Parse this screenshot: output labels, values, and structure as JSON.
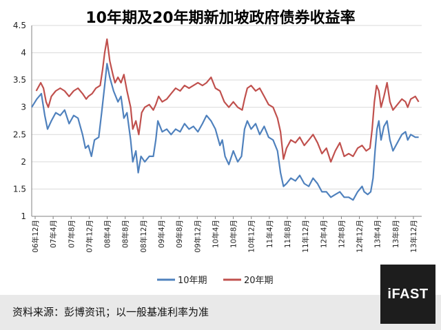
{
  "chart_data": {
    "type": "line",
    "title": "10年期及20年期新加坡政府债券收益率",
    "ylim": [
      1,
      4.5
    ],
    "yticks": [
      "1",
      "1.5",
      "2",
      "2.5",
      "3",
      "3.5",
      "4",
      "4.5"
    ],
    "xlim": [
      "2006-12",
      "2014-03"
    ],
    "x_tick_labels": [
      "06年12月",
      "07年4月",
      "07年8月",
      "07年12月",
      "08年4月",
      "08年8月",
      "08年12月",
      "09年4月",
      "09年8月",
      "09年12月",
      "10年4月",
      "10年8月",
      "10年12月",
      "11年4月",
      "11年8月",
      "11年12月",
      "12年4月",
      "12年8月",
      "12年12月",
      "13年4月",
      "13年8月",
      "13年12月"
    ],
    "grid": "horizontal",
    "legend_position": "bottom",
    "series": [
      {
        "name": "10年期",
        "color": "#4f81bd",
        "points": [
          [
            "2006-12-01",
            3.0
          ],
          [
            "2007-01-05",
            3.15
          ],
          [
            "2007-02-05",
            3.25
          ],
          [
            "2007-03-01",
            2.85
          ],
          [
            "2007-03-20",
            2.6
          ],
          [
            "2007-04-15",
            2.75
          ],
          [
            "2007-05-15",
            2.9
          ],
          [
            "2007-06-15",
            2.85
          ],
          [
            "2007-07-15",
            2.95
          ],
          [
            "2007-08-15",
            2.7
          ],
          [
            "2007-09-15",
            2.85
          ],
          [
            "2007-10-15",
            2.8
          ],
          [
            "2007-11-15",
            2.5
          ],
          [
            "2007-12-05",
            2.25
          ],
          [
            "2007-12-25",
            2.3
          ],
          [
            "2008-01-15",
            2.1
          ],
          [
            "2008-02-05",
            2.4
          ],
          [
            "2008-03-05",
            2.45
          ],
          [
            "2008-03-25",
            2.9
          ],
          [
            "2008-04-15",
            3.4
          ],
          [
            "2008-05-01",
            3.8
          ],
          [
            "2008-05-20",
            3.55
          ],
          [
            "2008-06-15",
            3.3
          ],
          [
            "2008-07-15",
            3.1
          ],
          [
            "2008-08-05",
            3.2
          ],
          [
            "2008-08-25",
            2.8
          ],
          [
            "2008-09-15",
            2.9
          ],
          [
            "2008-10-10",
            2.4
          ],
          [
            "2008-10-25",
            2.0
          ],
          [
            "2008-11-15",
            2.2
          ],
          [
            "2008-12-01",
            1.8
          ],
          [
            "2008-12-20",
            2.1
          ],
          [
            "2009-01-15",
            2.0
          ],
          [
            "2009-02-15",
            2.1
          ],
          [
            "2009-03-15",
            2.1
          ],
          [
            "2009-04-01",
            2.4
          ],
          [
            "2009-04-15",
            2.75
          ],
          [
            "2009-05-15",
            2.55
          ],
          [
            "2009-06-15",
            2.6
          ],
          [
            "2009-07-15",
            2.5
          ],
          [
            "2009-08-15",
            2.6
          ],
          [
            "2009-09-15",
            2.55
          ],
          [
            "2009-10-15",
            2.7
          ],
          [
            "2009-11-15",
            2.6
          ],
          [
            "2009-12-15",
            2.65
          ],
          [
            "2010-01-15",
            2.55
          ],
          [
            "2010-02-15",
            2.7
          ],
          [
            "2010-03-15",
            2.85
          ],
          [
            "2010-04-15",
            2.75
          ],
          [
            "2010-05-15",
            2.6
          ],
          [
            "2010-06-15",
            2.3
          ],
          [
            "2010-07-01",
            2.4
          ],
          [
            "2010-07-20",
            2.1
          ],
          [
            "2010-08-15",
            1.95
          ],
          [
            "2010-09-15",
            2.2
          ],
          [
            "2010-10-15",
            2.0
          ],
          [
            "2010-11-10",
            2.1
          ],
          [
            "2010-12-01",
            2.6
          ],
          [
            "2010-12-20",
            2.75
          ],
          [
            "2011-01-15",
            2.6
          ],
          [
            "2011-02-15",
            2.7
          ],
          [
            "2011-03-15",
            2.5
          ],
          [
            "2011-04-15",
            2.65
          ],
          [
            "2011-05-15",
            2.45
          ],
          [
            "2011-06-15",
            2.4
          ],
          [
            "2011-07-15",
            2.2
          ],
          [
            "2011-08-05",
            1.8
          ],
          [
            "2011-08-25",
            1.55
          ],
          [
            "2011-09-15",
            1.6
          ],
          [
            "2011-10-15",
            1.7
          ],
          [
            "2011-11-15",
            1.65
          ],
          [
            "2011-12-15",
            1.75
          ],
          [
            "2012-01-15",
            1.6
          ],
          [
            "2012-02-15",
            1.55
          ],
          [
            "2012-03-15",
            1.7
          ],
          [
            "2012-04-15",
            1.6
          ],
          [
            "2012-05-15",
            1.45
          ],
          [
            "2012-06-15",
            1.45
          ],
          [
            "2012-07-15",
            1.35
          ],
          [
            "2012-08-15",
            1.4
          ],
          [
            "2012-09-15",
            1.45
          ],
          [
            "2012-10-15",
            1.35
          ],
          [
            "2012-11-15",
            1.35
          ],
          [
            "2012-12-15",
            1.3
          ],
          [
            "2013-01-15",
            1.45
          ],
          [
            "2013-02-15",
            1.55
          ],
          [
            "2013-03-01",
            1.45
          ],
          [
            "2013-03-25",
            1.4
          ],
          [
            "2013-04-15",
            1.45
          ],
          [
            "2013-05-01",
            1.7
          ],
          [
            "2013-05-15",
            2.2
          ],
          [
            "2013-05-28",
            2.6
          ],
          [
            "2013-06-10",
            2.75
          ],
          [
            "2013-06-25",
            2.4
          ],
          [
            "2013-07-15",
            2.65
          ],
          [
            "2013-08-05",
            2.75
          ],
          [
            "2013-08-25",
            2.4
          ],
          [
            "2013-09-15",
            2.2
          ],
          [
            "2013-10-15",
            2.35
          ],
          [
            "2013-11-15",
            2.5
          ],
          [
            "2013-12-10",
            2.55
          ],
          [
            "2013-12-25",
            2.4
          ],
          [
            "2014-01-15",
            2.5
          ],
          [
            "2014-02-15",
            2.45
          ],
          [
            "2014-03-10",
            2.45
          ]
        ]
      },
      {
        "name": "20年期",
        "color": "#c0504d",
        "points": [
          [
            "2007-01-01",
            3.3
          ],
          [
            "2007-02-01",
            3.45
          ],
          [
            "2007-02-20",
            3.35
          ],
          [
            "2007-03-10",
            3.1
          ],
          [
            "2007-03-25",
            3.0
          ],
          [
            "2007-04-15",
            3.2
          ],
          [
            "2007-05-15",
            3.3
          ],
          [
            "2007-06-15",
            3.35
          ],
          [
            "2007-07-15",
            3.3
          ],
          [
            "2007-08-15",
            3.2
          ],
          [
            "2007-09-15",
            3.3
          ],
          [
            "2007-10-15",
            3.35
          ],
          [
            "2007-11-15",
            3.25
          ],
          [
            "2007-12-10",
            3.15
          ],
          [
            "2007-12-25",
            3.2
          ],
          [
            "2008-01-20",
            3.25
          ],
          [
            "2008-02-15",
            3.35
          ],
          [
            "2008-03-15",
            3.4
          ],
          [
            "2008-04-01",
            3.7
          ],
          [
            "2008-04-15",
            4.0
          ],
          [
            "2008-05-01",
            4.25
          ],
          [
            "2008-05-20",
            3.85
          ],
          [
            "2008-06-10",
            3.6
          ],
          [
            "2008-06-25",
            3.45
          ],
          [
            "2008-07-15",
            3.55
          ],
          [
            "2008-08-05",
            3.45
          ],
          [
            "2008-08-25",
            3.6
          ],
          [
            "2008-09-15",
            3.3
          ],
          [
            "2008-10-10",
            3.0
          ],
          [
            "2008-10-25",
            2.6
          ],
          [
            "2008-11-15",
            2.75
          ],
          [
            "2008-12-05",
            2.5
          ],
          [
            "2008-12-25",
            2.9
          ],
          [
            "2009-01-15",
            3.0
          ],
          [
            "2009-02-15",
            3.05
          ],
          [
            "2009-03-15",
            2.95
          ],
          [
            "2009-04-01",
            3.05
          ],
          [
            "2009-04-20",
            3.2
          ],
          [
            "2009-05-15",
            3.1
          ],
          [
            "2009-06-15",
            3.15
          ],
          [
            "2009-07-15",
            3.25
          ],
          [
            "2009-08-15",
            3.35
          ],
          [
            "2009-09-15",
            3.3
          ],
          [
            "2009-10-15",
            3.4
          ],
          [
            "2009-11-15",
            3.35
          ],
          [
            "2009-12-15",
            3.4
          ],
          [
            "2010-01-15",
            3.45
          ],
          [
            "2010-02-15",
            3.4
          ],
          [
            "2010-03-15",
            3.45
          ],
          [
            "2010-04-15",
            3.55
          ],
          [
            "2010-05-15",
            3.35
          ],
          [
            "2010-06-15",
            3.3
          ],
          [
            "2010-07-15",
            3.1
          ],
          [
            "2010-08-15",
            3.0
          ],
          [
            "2010-09-15",
            3.1
          ],
          [
            "2010-10-15",
            3.0
          ],
          [
            "2010-11-15",
            2.95
          ],
          [
            "2010-12-01",
            3.15
          ],
          [
            "2010-12-20",
            3.35
          ],
          [
            "2011-01-15",
            3.4
          ],
          [
            "2011-02-15",
            3.3
          ],
          [
            "2011-03-15",
            3.35
          ],
          [
            "2011-04-15",
            3.2
          ],
          [
            "2011-05-15",
            3.05
          ],
          [
            "2011-06-15",
            3.0
          ],
          [
            "2011-07-15",
            2.8
          ],
          [
            "2011-08-05",
            2.55
          ],
          [
            "2011-08-25",
            2.05
          ],
          [
            "2011-09-15",
            2.25
          ],
          [
            "2011-10-15",
            2.4
          ],
          [
            "2011-11-15",
            2.35
          ],
          [
            "2011-12-15",
            2.45
          ],
          [
            "2012-01-15",
            2.3
          ],
          [
            "2012-02-15",
            2.4
          ],
          [
            "2012-03-15",
            2.5
          ],
          [
            "2012-04-15",
            2.35
          ],
          [
            "2012-05-15",
            2.15
          ],
          [
            "2012-06-15",
            2.25
          ],
          [
            "2012-07-15",
            2.0
          ],
          [
            "2012-08-15",
            2.2
          ],
          [
            "2012-09-15",
            2.35
          ],
          [
            "2012-10-15",
            2.1
          ],
          [
            "2012-11-15",
            2.15
          ],
          [
            "2012-12-15",
            2.1
          ],
          [
            "2013-01-15",
            2.25
          ],
          [
            "2013-02-15",
            2.3
          ],
          [
            "2013-03-15",
            2.2
          ],
          [
            "2013-04-10",
            2.25
          ],
          [
            "2013-04-25",
            2.6
          ],
          [
            "2013-05-10",
            3.1
          ],
          [
            "2013-05-25",
            3.4
          ],
          [
            "2013-06-10",
            3.3
          ],
          [
            "2013-06-25",
            3.0
          ],
          [
            "2013-07-15",
            3.2
          ],
          [
            "2013-08-05",
            3.45
          ],
          [
            "2013-08-25",
            3.1
          ],
          [
            "2013-09-15",
            2.95
          ],
          [
            "2013-10-15",
            3.05
          ],
          [
            "2013-11-15",
            3.15
          ],
          [
            "2013-12-10",
            3.1
          ],
          [
            "2013-12-25",
            3.0
          ],
          [
            "2014-01-15",
            3.15
          ],
          [
            "2014-02-15",
            3.2
          ],
          [
            "2014-03-10",
            3.1
          ]
        ]
      }
    ]
  },
  "footer": {
    "source_note": "资料来源：彭博资讯；以一般基准利率为准",
    "logo_text": "iFAST"
  }
}
